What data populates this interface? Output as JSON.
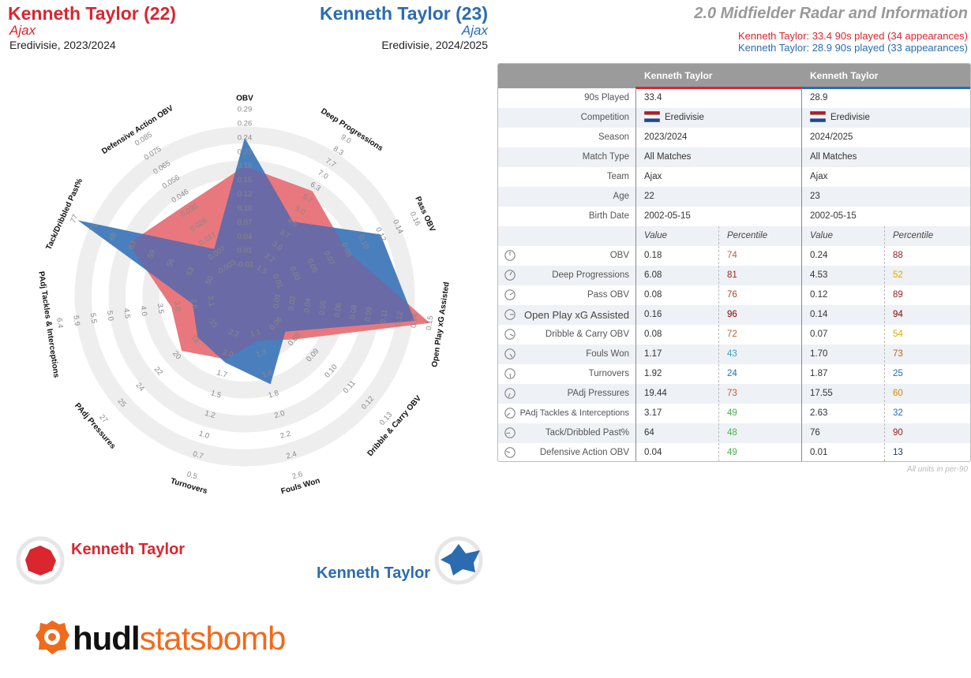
{
  "header": {
    "player1_title": "Kenneth Taylor (22)",
    "player1_team": "Ajax",
    "player1_comp": "Eredivisie, 2023/2024",
    "player2_title": "Kenneth Taylor (23)",
    "player2_team": "Ajax",
    "player2_comp": "Eredivisie, 2024/2025",
    "main_title": "2.0 Midfielder Radar and Information",
    "sub1": "Kenneth Taylor: 33.4 90s played (34 appearances)",
    "sub2": "Kenneth Taylor: 28.9 90s played (33 appearances)"
  },
  "colors": {
    "player1": "#d9262f",
    "player2": "#2b6cb0",
    "fill1": "#e8787d",
    "fill2": "#4a7fbe",
    "overlap": "#6a6aa6",
    "ring": "#eeeeee"
  },
  "legend": {
    "name1": "Kenneth Taylor",
    "name2": "Kenneth Taylor"
  },
  "logo": {
    "brand1": "hudl",
    "brand2": "statsbomb"
  },
  "chart_data": {
    "type": "radar",
    "axes": [
      {
        "label": "OBV",
        "ticks": [
          "-0.03",
          "0.01",
          "0.04",
          "0.07",
          "0.10",
          "0.12",
          "0.15",
          "0.18",
          "0.21",
          "0.24",
          "0.26",
          "0.29"
        ]
      },
      {
        "label": "Deep Progressions",
        "ticks": [
          "1.5",
          "2.2",
          "3.0",
          "3.7",
          "4.5",
          "5.0",
          "5.7",
          "6.3",
          "7.0",
          "7.7",
          "8.3",
          "9.0"
        ]
      },
      {
        "label": "Pass OBV",
        "ticks": [
          "0.01",
          "0.03",
          "0.05",
          "0.07",
          "0.08",
          "0.10",
          "0.12",
          "0.14",
          "0.16"
        ]
      },
      {
        "label": "Open Play xG Assisted",
        "ticks": [
          "0.01",
          "0.02",
          "0.04",
          "0.05",
          "0.06",
          "0.08",
          "0.09",
          "0.11",
          "0.12",
          "0.14",
          "0.15"
        ]
      },
      {
        "label": "Dribble & Carry OBV",
        "ticks": [
          "0.06",
          "0.08",
          "0.09",
          "0.10",
          "0.11",
          "0.12",
          "0.13"
        ]
      },
      {
        "label": "Fouls Won",
        "ticks": [
          "1.1",
          "1.3",
          "1.6",
          "1.8",
          "2.0",
          "2.2",
          "2.4",
          "2.6"
        ]
      },
      {
        "label": "Turnovers",
        "ticks": [
          "2.2",
          "2.0",
          "1.7",
          "1.5",
          "1.2",
          "1.0",
          "0.7",
          "0.5"
        ]
      },
      {
        "label": "PAdj Pressures",
        "ticks": [
          "15",
          "18",
          "20",
          "22",
          "24",
          "25",
          "27"
        ]
      },
      {
        "label": "PAdj Tackles & Interceptions",
        "ticks": [
          "2.1",
          "2.6",
          "3.0",
          "3.5",
          "4.0",
          "4.5",
          "5.0",
          "5.5",
          "5.9",
          "6.4"
        ]
      },
      {
        "label": "Tack/Dribbled Past%",
        "ticks": [
          "50",
          "53",
          "56",
          "59",
          "63",
          "68",
          "71",
          "77"
        ]
      },
      {
        "label": "Defensive Action OBV",
        "ticks": [
          "-0.003",
          "0.007",
          "0.017",
          "0.026",
          "0.036",
          "0.046",
          "0.056",
          "0.065",
          "0.075",
          "0.085"
        ]
      }
    ],
    "series": [
      {
        "name": "Kenneth Taylor",
        "values": [
          0.18,
          6.08,
          0.08,
          0.16,
          0.08,
          1.17,
          1.92,
          19.44,
          3.17,
          64,
          0.04
        ]
      },
      {
        "name": "Kenneth Taylor",
        "values": [
          0.24,
          4.53,
          0.12,
          0.14,
          0.07,
          1.7,
          1.87,
          17.55,
          2.63,
          76,
          0.01
        ]
      }
    ]
  },
  "table": {
    "col_player1": "Kenneth Taylor",
    "col_player2": "Kenneth Taylor",
    "info_rows": [
      {
        "label": "90s Played",
        "v1": "33.4",
        "v2": "28.9"
      },
      {
        "label": "Competition",
        "v1": "Eredivisie",
        "v2": "Eredivisie",
        "flag": true
      },
      {
        "label": "Season",
        "v1": "2023/2024",
        "v2": "2024/2025"
      },
      {
        "label": "Match Type",
        "v1": "All Matches",
        "v2": "All Matches"
      },
      {
        "label": "Team",
        "v1": "Ajax",
        "v2": "Ajax"
      },
      {
        "label": "Age",
        "v1": "22",
        "v2": "23"
      },
      {
        "label": "Birth Date",
        "v1": "2002-05-15",
        "v2": "2002-05-15"
      }
    ],
    "value_header": "Value",
    "percentile_header": "Percentile",
    "metric_rows": [
      {
        "label": "OBV",
        "v1": "0.18",
        "p1": "74",
        "c1": "#c0602a",
        "v2": "0.24",
        "p2": "88",
        "c2": "#9b1c1c"
      },
      {
        "label": "Deep Progressions",
        "v1": "6.08",
        "p1": "81",
        "c1": "#a0291f",
        "v2": "4.53",
        "p2": "52",
        "c2": "#e0a800"
      },
      {
        "label": "Pass OBV",
        "v1": "0.08",
        "p1": "76",
        "c1": "#b3441f",
        "v2": "0.12",
        "p2": "89",
        "c2": "#9b1c1c"
      },
      {
        "label": "Open Play xG Assisted",
        "v1": "0.16",
        "p1": "96",
        "c1": "#8b0000",
        "v2": "0.14",
        "p2": "94",
        "c2": "#8b0000"
      },
      {
        "label": "Dribble & Carry OBV",
        "v1": "0.08",
        "p1": "72",
        "c1": "#c0602a",
        "v2": "0.07",
        "p2": "54",
        "c2": "#e0a800"
      },
      {
        "label": "Fouls Won",
        "v1": "1.17",
        "p1": "43",
        "c1": "#3aa6b9",
        "v2": "1.70",
        "p2": "73",
        "c2": "#c0602a"
      },
      {
        "label": "Turnovers",
        "v1": "1.92",
        "p1": "24",
        "c1": "#2b6cb0",
        "v2": "1.87",
        "p2": "25",
        "c2": "#2b6cb0"
      },
      {
        "label": "PAdj Pressures",
        "v1": "19.44",
        "p1": "73",
        "c1": "#c0602a",
        "v2": "17.55",
        "p2": "60",
        "c2": "#d08a00"
      },
      {
        "label": "PAdj Tackles & Interceptions",
        "v1": "3.17",
        "p1": "49",
        "c1": "#4caf50",
        "v2": "2.63",
        "p2": "32",
        "c2": "#2b6cb0"
      },
      {
        "label": "Tack/Dribbled Past%",
        "v1": "64",
        "p1": "48",
        "c1": "#4caf50",
        "v2": "76",
        "p2": "90",
        "c2": "#9b1c1c"
      },
      {
        "label": "Defensive Action OBV",
        "v1": "0.04",
        "p1": "49",
        "c1": "#4caf50",
        "v2": "0.01",
        "p2": "13",
        "c2": "#1e3a6e"
      }
    ],
    "units_note": "All units in per-90"
  }
}
